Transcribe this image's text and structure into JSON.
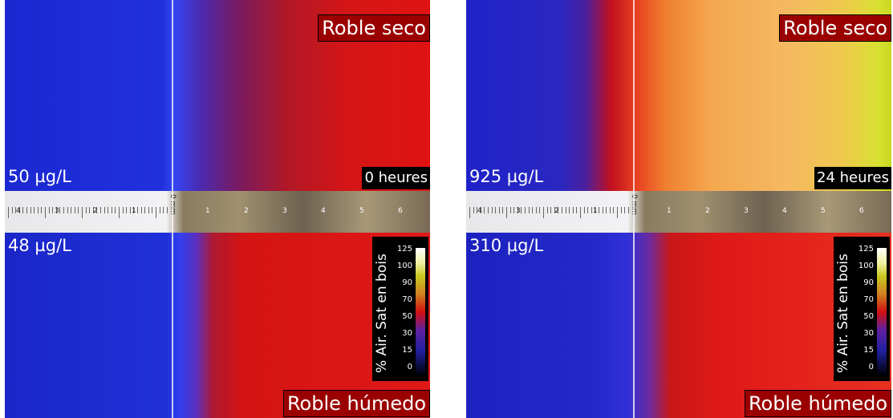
{
  "panels": [
    {
      "top_label": "Roble seco",
      "top_conc": "50 µg/L",
      "time": "0 heures",
      "bottom_conc": "48 µg/L",
      "bottom_label": "Roble húmedo",
      "colorbar_title": "% Air. Sat en bois"
    },
    {
      "top_label": "Roble seco",
      "top_conc": "925 µg/L",
      "time": "24 heures",
      "bottom_conc": "310 µg/L",
      "bottom_label": "Roble húmedo",
      "colorbar_title": "% Air. Sat en bois"
    }
  ],
  "colorbar_ticks": [
    125,
    100,
    90,
    70,
    50,
    30,
    15,
    0
  ],
  "ruler_left": [
    "4",
    "3",
    "2",
    "1"
  ],
  "ruler_zero": "0 mm",
  "ruler_right": [
    "1",
    "2",
    "3",
    "4",
    "5",
    "6"
  ]
}
